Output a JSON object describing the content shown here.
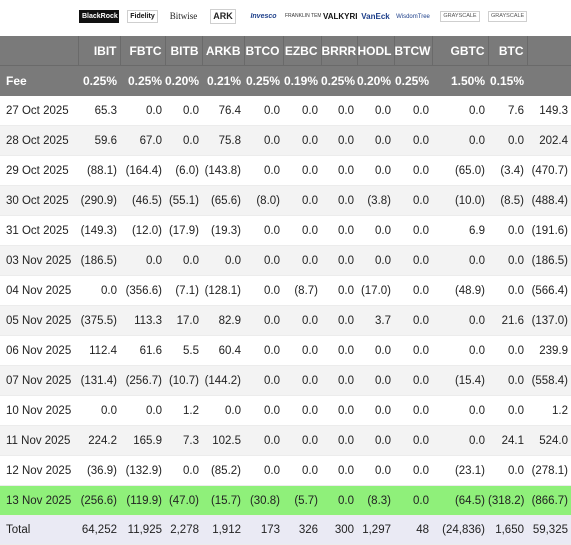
{
  "table": {
    "logos": [
      {
        "name": "blackrock-logo",
        "text": "BlackRock",
        "cls": "black"
      },
      {
        "name": "fidelity-logo",
        "text": "Fidelity",
        "cls": "fid"
      },
      {
        "name": "bitwise-logo",
        "text": "Bitwise",
        "cls": "bitwise"
      },
      {
        "name": "ark-logo",
        "text": "ARK",
        "cls": "ark"
      },
      {
        "name": "invesco-logo",
        "text": "Invesco",
        "cls": "inv"
      },
      {
        "name": "franklin-logo",
        "text": "FRANKLIN TEMPLETON",
        "cls": "frank"
      },
      {
        "name": "valkyrie-logo",
        "text": "VALKYRIE",
        "cls": "valk"
      },
      {
        "name": "vaneck-logo",
        "text": "VanEck",
        "cls": "vaneck"
      },
      {
        "name": "wisdomtree-logo",
        "text": "WisdomTree",
        "cls": "wt"
      },
      {
        "name": "grayscale-logo-gbtc",
        "text": "GRAYSCALE",
        "cls": "gs"
      },
      {
        "name": "grayscale-logo-btc",
        "text": "GRAYSCALE",
        "cls": "gs"
      }
    ],
    "total_label": "Total",
    "tickers": [
      "IBIT",
      "FBTC",
      "BITB",
      "ARKB",
      "BTCO",
      "EZBC",
      "BRRR",
      "HODL",
      "BTCW",
      "GBTC",
      "BTC"
    ],
    "fee_label": "Fee",
    "fees": [
      "0.25%",
      "0.25%",
      "0.20%",
      "0.21%",
      "0.25%",
      "0.19%",
      "0.25%",
      "0.20%",
      "0.25%",
      "1.50%",
      "0.15%"
    ],
    "rows": [
      {
        "date": "27 Oct 2025",
        "values": [
          "65.3",
          "0.0",
          "0.0",
          "76.4",
          "0.0",
          "0.0",
          "0.0",
          "0.0",
          "0.0",
          "0.0",
          "7.6"
        ],
        "total": "149.3"
      },
      {
        "date": "28 Oct 2025",
        "values": [
          "59.6",
          "67.0",
          "0.0",
          "75.8",
          "0.0",
          "0.0",
          "0.0",
          "0.0",
          "0.0",
          "0.0",
          "0.0"
        ],
        "total": "202.4"
      },
      {
        "date": "29 Oct 2025",
        "values": [
          "(88.1)",
          "(164.4)",
          "(6.0)",
          "(143.8)",
          "0.0",
          "0.0",
          "0.0",
          "0.0",
          "0.0",
          "(65.0)",
          "(3.4)"
        ],
        "total": "(470.7)"
      },
      {
        "date": "30 Oct 2025",
        "values": [
          "(290.9)",
          "(46.5)",
          "(55.1)",
          "(65.6)",
          "(8.0)",
          "0.0",
          "0.0",
          "(3.8)",
          "0.0",
          "(10.0)",
          "(8.5)"
        ],
        "total": "(488.4)"
      },
      {
        "date": "31 Oct 2025",
        "values": [
          "(149.3)",
          "(12.0)",
          "(17.9)",
          "(19.3)",
          "0.0",
          "0.0",
          "0.0",
          "0.0",
          "0.0",
          "6.9",
          "0.0"
        ],
        "total": "(191.6)"
      },
      {
        "date": "03 Nov 2025",
        "values": [
          "(186.5)",
          "0.0",
          "0.0",
          "0.0",
          "0.0",
          "0.0",
          "0.0",
          "0.0",
          "0.0",
          "0.0",
          "0.0"
        ],
        "total": "(186.5)"
      },
      {
        "date": "04 Nov 2025",
        "values": [
          "0.0",
          "(356.6)",
          "(7.1)",
          "(128.1)",
          "0.0",
          "(8.7)",
          "0.0",
          "(17.0)",
          "0.0",
          "(48.9)",
          "0.0"
        ],
        "total": "(566.4)"
      },
      {
        "date": "05 Nov 2025",
        "values": [
          "(375.5)",
          "113.3",
          "17.0",
          "82.9",
          "0.0",
          "0.0",
          "0.0",
          "3.7",
          "0.0",
          "0.0",
          "21.6"
        ],
        "total": "(137.0)"
      },
      {
        "date": "06 Nov 2025",
        "values": [
          "112.4",
          "61.6",
          "5.5",
          "60.4",
          "0.0",
          "0.0",
          "0.0",
          "0.0",
          "0.0",
          "0.0",
          "0.0"
        ],
        "total": "239.9"
      },
      {
        "date": "07 Nov 2025",
        "values": [
          "(131.4)",
          "(256.7)",
          "(10.7)",
          "(144.2)",
          "0.0",
          "0.0",
          "0.0",
          "0.0",
          "0.0",
          "(15.4)",
          "0.0"
        ],
        "total": "(558.4)"
      },
      {
        "date": "10 Nov 2025",
        "values": [
          "0.0",
          "0.0",
          "1.2",
          "0.0",
          "0.0",
          "0.0",
          "0.0",
          "0.0",
          "0.0",
          "0.0",
          "0.0"
        ],
        "total": "1.2"
      },
      {
        "date": "11 Nov 2025",
        "values": [
          "224.2",
          "165.9",
          "7.3",
          "102.5",
          "0.0",
          "0.0",
          "0.0",
          "0.0",
          "0.0",
          "0.0",
          "24.1"
        ],
        "total": "524.0"
      },
      {
        "date": "12 Nov 2025",
        "values": [
          "(36.9)",
          "(132.9)",
          "0.0",
          "(85.2)",
          "0.0",
          "0.0",
          "0.0",
          "0.0",
          "0.0",
          "(23.1)",
          "0.0"
        ],
        "total": "(278.1)"
      },
      {
        "date": "13 Nov 2025",
        "values": [
          "(256.6)",
          "(119.9)",
          "(47.0)",
          "(15.7)",
          "(30.8)",
          "(5.7)",
          "0.0",
          "(8.3)",
          "0.0",
          "(64.5)",
          "(318.2)"
        ],
        "total": "(866.7)",
        "highlight": true
      }
    ],
    "totals_row": {
      "label": "Total",
      "values": [
        "64,252",
        "11,925",
        "2,278",
        "1,912",
        "173",
        "326",
        "300",
        "1,297",
        "48",
        "(24,836)",
        "1,650"
      ],
      "total": "59,325"
    }
  },
  "colors": {
    "header_bg": "#7a7a7a",
    "negative": "#e03030",
    "highlight_row": "#8ff07a",
    "alt_row": "#f3f3f3",
    "total_row": "#eaeaf4"
  }
}
